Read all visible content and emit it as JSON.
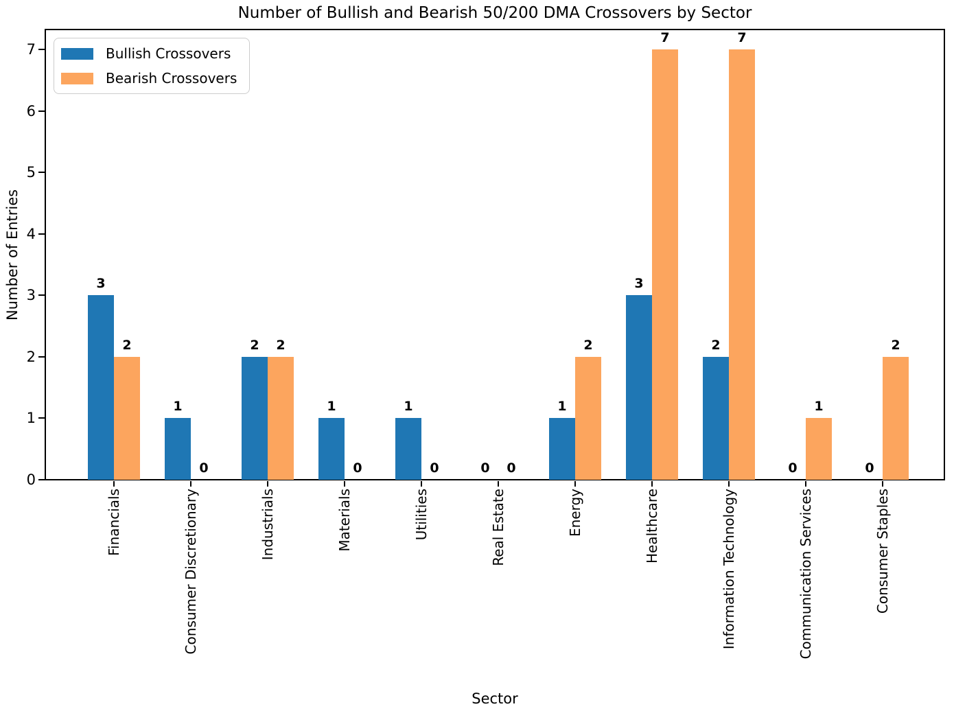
{
  "chart_data": {
    "type": "bar",
    "title": "Number of Bullish and Bearish 50/200 DMA Crossovers by Sector",
    "xlabel": "Sector",
    "ylabel": "Number of Entries",
    "categories": [
      "Financials",
      "Consumer Discretionary",
      "Industrials",
      "Materials",
      "Utilities",
      "Real Estate",
      "Energy",
      "Healthcare",
      "Information Technology",
      "Communication Services",
      "Consumer Staples"
    ],
    "series": [
      {
        "name": "Bullish Crossovers",
        "color": "#1f77b4",
        "values": [
          3,
          1,
          2,
          1,
          1,
          0,
          1,
          3,
          2,
          0,
          0
        ]
      },
      {
        "name": "Bearish Crossovers",
        "color": "#fca55e",
        "values": [
          2,
          0,
          2,
          0,
          0,
          0,
          2,
          7,
          7,
          1,
          2
        ]
      }
    ],
    "yticks": [
      0,
      1,
      2,
      3,
      4,
      5,
      6,
      7
    ],
    "ylim": [
      0,
      7.35
    ],
    "grid": false,
    "legend_position": "upper left",
    "bar_value_labels": true,
    "axis_color": "#000000",
    "background_color": "#ffffff"
  }
}
